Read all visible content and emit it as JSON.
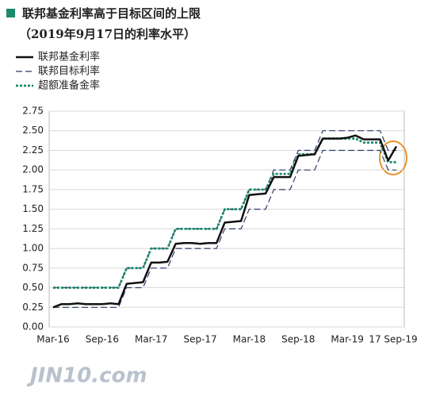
{
  "chart_data": {
    "type": "line",
    "title": "联邦基金利率高于目标区间的上限",
    "subtitle": "（2019年9月17日的利率水平）",
    "watermark": "JIN10.com",
    "categories": [
      "Mar-16",
      null,
      null,
      null,
      null,
      null,
      "Sep-16",
      null,
      null,
      null,
      null,
      null,
      "Mar-17",
      null,
      null,
      null,
      null,
      null,
      "Sep-17",
      null,
      null,
      null,
      null,
      null,
      "Mar-18",
      null,
      null,
      null,
      null,
      null,
      "Sep-18",
      null,
      null,
      null,
      null,
      null,
      "Mar-19",
      null,
      null,
      null,
      null,
      null,
      "17 Sep-19"
    ],
    "series": [
      {
        "name": "联邦基金利率",
        "color": "#111111",
        "line_style": "solid",
        "values": [
          0.25,
          0.29,
          0.29,
          0.3,
          0.29,
          0.29,
          0.29,
          0.3,
          0.29,
          0.55,
          0.56,
          0.57,
          0.82,
          0.82,
          0.83,
          1.06,
          1.07,
          1.07,
          1.06,
          1.07,
          1.07,
          1.33,
          1.34,
          1.35,
          1.68,
          1.69,
          1.7,
          1.91,
          1.91,
          1.91,
          2.18,
          2.19,
          2.2,
          2.4,
          2.4,
          2.4,
          2.41,
          2.44,
          2.39,
          2.39,
          2.39,
          2.12,
          2.3
        ]
      },
      {
        "name": "联邦目标利率",
        "color": "#2d3a6b",
        "line_style": "dashed",
        "values": [
          0.25,
          0.25,
          0.25,
          0.25,
          0.25,
          0.25,
          0.25,
          0.25,
          0.25,
          0.5,
          0.5,
          0.5,
          0.75,
          0.75,
          0.75,
          1.0,
          1.0,
          1.0,
          1.0,
          1.0,
          1.0,
          1.25,
          1.25,
          1.25,
          1.5,
          1.5,
          1.5,
          1.75,
          1.75,
          1.75,
          2.0,
          2.0,
          2.0,
          2.25,
          2.25,
          2.25,
          2.25,
          2.25,
          2.25,
          2.25,
          2.25,
          2.0,
          2.0
        ],
        "upper": [
          0.5,
          0.5,
          0.5,
          0.5,
          0.5,
          0.5,
          0.5,
          0.5,
          0.5,
          0.75,
          0.75,
          0.75,
          1.0,
          1.0,
          1.0,
          1.25,
          1.25,
          1.25,
          1.25,
          1.25,
          1.25,
          1.5,
          1.5,
          1.5,
          1.75,
          1.75,
          1.75,
          2.0,
          2.0,
          2.0,
          2.25,
          2.25,
          2.25,
          2.5,
          2.5,
          2.5,
          2.5,
          2.5,
          2.5,
          2.5,
          2.5,
          2.25,
          2.25
        ]
      },
      {
        "name": "超额准备金率",
        "color": "#1a8a6a",
        "line_style": "dotted",
        "values": [
          0.5,
          0.5,
          0.5,
          0.5,
          0.5,
          0.5,
          0.5,
          0.5,
          0.5,
          0.75,
          0.75,
          0.75,
          1.0,
          1.0,
          1.0,
          1.25,
          1.25,
          1.25,
          1.25,
          1.25,
          1.25,
          1.5,
          1.5,
          1.5,
          1.75,
          1.75,
          1.75,
          1.95,
          1.95,
          1.95,
          2.2,
          2.2,
          2.2,
          2.4,
          2.4,
          2.4,
          2.4,
          2.4,
          2.35,
          2.35,
          2.35,
          2.1,
          2.1
        ]
      }
    ],
    "ylim": [
      0,
      2.75
    ],
    "yticks": [
      {
        "value": 0,
        "label": "0.00"
      },
      {
        "value": 0.25,
        "label": "0.25"
      },
      {
        "value": 0.5,
        "label": "0.50"
      },
      {
        "value": 0.75,
        "label": "0.75"
      },
      {
        "value": 1,
        "label": "1.00"
      },
      {
        "value": 1.25,
        "label": "1.25"
      },
      {
        "value": 1.5,
        "label": "1.50"
      },
      {
        "value": 1.75,
        "label": "1.75"
      },
      {
        "value": 2,
        "label": "2.00"
      },
      {
        "value": 2.25,
        "label": "2.25"
      },
      {
        "value": 2.5,
        "label": "2.50"
      },
      {
        "value": 2.75,
        "label": "2.75"
      }
    ],
    "grid": true,
    "legend": "top-left"
  }
}
